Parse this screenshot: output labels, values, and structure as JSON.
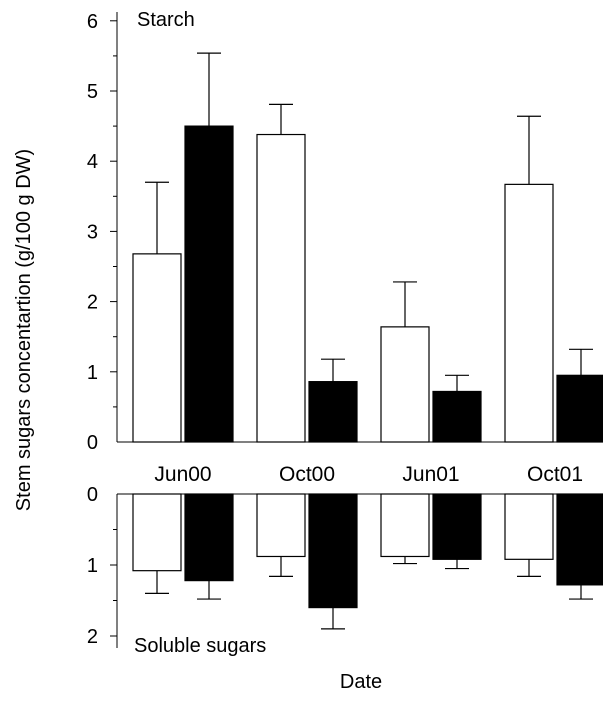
{
  "chart_data": {
    "type": "bar",
    "ylabel": "Stem sugars concentartion (g/100 g DW)",
    "xlabel": "Date",
    "categories": [
      "Jun00",
      "Oct00",
      "Jun01",
      "Oct01"
    ],
    "series_styles": [
      {
        "fill": "#ffffff",
        "stroke": "#000000"
      },
      {
        "fill": "#000000",
        "stroke": "#000000"
      }
    ],
    "panels": [
      {
        "label": "Starch",
        "ylim": [
          0,
          6
        ],
        "yticks": [
          "0",
          "1",
          "2",
          "3",
          "4",
          "5",
          "6"
        ],
        "direction": "up",
        "series": [
          {
            "values": [
              2.68,
              4.38,
              1.64,
              3.67
            ],
            "errors": [
              1.02,
              0.43,
              0.64,
              0.97
            ]
          },
          {
            "values": [
              4.5,
              0.86,
              0.72,
              0.95
            ],
            "errors": [
              1.04,
              0.32,
              0.23,
              0.37
            ]
          }
        ]
      },
      {
        "label": "Soluble sugars",
        "ylim": [
          0,
          2
        ],
        "yticks": [
          "0",
          "1",
          "2"
        ],
        "direction": "down",
        "series": [
          {
            "values": [
              1.08,
              0.88,
              0.88,
              0.92
            ],
            "errors": [
              0.32,
              0.28,
              0.1,
              0.24
            ]
          },
          {
            "values": [
              1.22,
              1.6,
              0.92,
              1.28
            ],
            "errors": [
              0.26,
              0.3,
              0.13,
              0.2
            ]
          }
        ]
      }
    ]
  }
}
